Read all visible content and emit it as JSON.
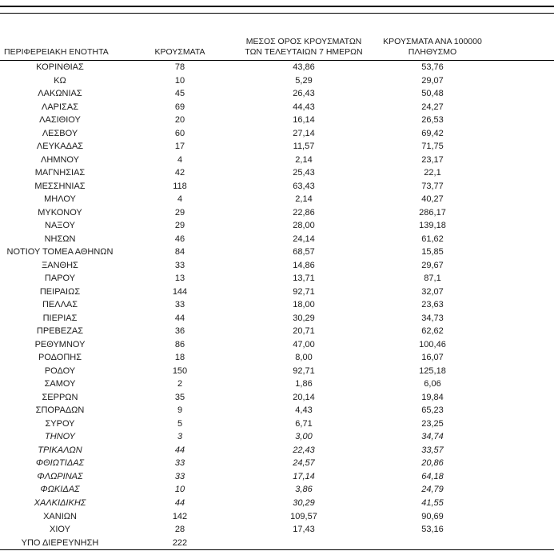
{
  "page": {
    "background": "#ffffff",
    "text_color": "#1c1c1c",
    "line_color": "#000000"
  },
  "table": {
    "header": {
      "region": "ΠΕΡΙΦΕΡΕΙΑΚΗ ΕΝΟΤΗΤΑ",
      "cases": "ΚΡΟΥΣΜΑΤΑ",
      "avg7_line1": "ΜΕΣΟΣ ΟΡΟΣ ΚΡΟΥΣΜΑΤΩΝ",
      "avg7_line2": "ΤΩΝ ΤΕΛΕΥΤΑΙΩΝ 7 ΗΜΕΡΩΝ",
      "per100k_line1": "ΚΡΟΥΣΜΑΤΑ ΑΝΑ 100000",
      "per100k_line2": "ΠΛΗΘΥΣΜΟ"
    },
    "rows": [
      {
        "region": "ΚΟΡΙΝΘΙΑΣ",
        "cases": "78",
        "avg7": "43,86",
        "per100k": "53,76",
        "italic": false
      },
      {
        "region": "ΚΩ",
        "cases": "10",
        "avg7": "5,29",
        "per100k": "29,07",
        "italic": false
      },
      {
        "region": "ΛΑΚΩΝΙΑΣ",
        "cases": "45",
        "avg7": "26,43",
        "per100k": "50,48",
        "italic": false
      },
      {
        "region": "ΛΑΡΙΣΑΣ",
        "cases": "69",
        "avg7": "44,43",
        "per100k": "24,27",
        "italic": false
      },
      {
        "region": "ΛΑΣΙΘΙΟΥ",
        "cases": "20",
        "avg7": "16,14",
        "per100k": "26,53",
        "italic": false
      },
      {
        "region": "ΛΕΣΒΟΥ",
        "cases": "60",
        "avg7": "27,14",
        "per100k": "69,42",
        "italic": false
      },
      {
        "region": "ΛΕΥΚΑΔΑΣ",
        "cases": "17",
        "avg7": "11,57",
        "per100k": "71,75",
        "italic": false
      },
      {
        "region": "ΛΗΜΝΟΥ",
        "cases": "4",
        "avg7": "2,14",
        "per100k": "23,17",
        "italic": false
      },
      {
        "region": "ΜΑΓΝΗΣΙΑΣ",
        "cases": "42",
        "avg7": "25,43",
        "per100k": "22,1",
        "italic": false
      },
      {
        "region": "ΜΕΣΣΗΝΙΑΣ",
        "cases": "118",
        "avg7": "63,43",
        "per100k": "73,77",
        "italic": false
      },
      {
        "region": "ΜΗΛΟΥ",
        "cases": "4",
        "avg7": "2,14",
        "per100k": "40,27",
        "italic": false
      },
      {
        "region": "ΜΥΚΟΝΟΥ",
        "cases": "29",
        "avg7": "22,86",
        "per100k": "286,17",
        "italic": false
      },
      {
        "region": "ΝΑΞΟΥ",
        "cases": "29",
        "avg7": "28,00",
        "per100k": "139,18",
        "italic": false
      },
      {
        "region": "ΝΗΣΩΝ",
        "cases": "46",
        "avg7": "24,14",
        "per100k": "61,62",
        "italic": false
      },
      {
        "region": "ΝΟΤΙΟΥ ΤΟΜΕΑ ΑΘΗΝΩΝ",
        "cases": "84",
        "avg7": "68,57",
        "per100k": "15,85",
        "italic": false
      },
      {
        "region": "ΞΑΝΘΗΣ",
        "cases": "33",
        "avg7": "14,86",
        "per100k": "29,67",
        "italic": false
      },
      {
        "region": "ΠΑΡΟΥ",
        "cases": "13",
        "avg7": "13,71",
        "per100k": "87,1",
        "italic": false
      },
      {
        "region": "ΠΕΙΡΑΙΩΣ",
        "cases": "144",
        "avg7": "92,71",
        "per100k": "32,07",
        "italic": false
      },
      {
        "region": "ΠΕΛΛΑΣ",
        "cases": "33",
        "avg7": "18,00",
        "per100k": "23,63",
        "italic": false
      },
      {
        "region": "ΠΙΕΡΙΑΣ",
        "cases": "44",
        "avg7": "30,29",
        "per100k": "34,73",
        "italic": false
      },
      {
        "region": "ΠΡΕΒΕΖΑΣ",
        "cases": "36",
        "avg7": "20,71",
        "per100k": "62,62",
        "italic": false
      },
      {
        "region": "ΡΕΘΥΜΝΟΥ",
        "cases": "86",
        "avg7": "47,00",
        "per100k": "100,46",
        "italic": false
      },
      {
        "region": "ΡΟΔΟΠΗΣ",
        "cases": "18",
        "avg7": "8,00",
        "per100k": "16,07",
        "italic": false
      },
      {
        "region": "ΡΟΔΟΥ",
        "cases": "150",
        "avg7": "92,71",
        "per100k": "125,18",
        "italic": false
      },
      {
        "region": "ΣΑΜΟΥ",
        "cases": "2",
        "avg7": "1,86",
        "per100k": "6,06",
        "italic": false
      },
      {
        "region": "ΣΕΡΡΩΝ",
        "cases": "35",
        "avg7": "20,14",
        "per100k": "19,84",
        "italic": false
      },
      {
        "region": "ΣΠΟΡΑΔΩΝ",
        "cases": "9",
        "avg7": "4,43",
        "per100k": "65,23",
        "italic": false
      },
      {
        "region": "ΣΥΡΟΥ",
        "cases": "5",
        "avg7": "6,71",
        "per100k": "23,25",
        "italic": false
      },
      {
        "region": "ΤΗΝΟΥ",
        "cases": "3",
        "avg7": "3,00",
        "per100k": "34,74",
        "italic": true
      },
      {
        "region": "ΤΡΙΚΑΛΩΝ",
        "cases": "44",
        "avg7": "22,43",
        "per100k": "33,57",
        "italic": true
      },
      {
        "region": "ΦΘΙΩΤΙΔΑΣ",
        "cases": "33",
        "avg7": "24,57",
        "per100k": "20,86",
        "italic": true
      },
      {
        "region": "ΦΛΩΡΙΝΑΣ",
        "cases": "33",
        "avg7": "17,14",
        "per100k": "64,18",
        "italic": true
      },
      {
        "region": "ΦΩΚΙΔΑΣ",
        "cases": "10",
        "avg7": "3,86",
        "per100k": "24,79",
        "italic": true
      },
      {
        "region": "ΧΑΛΚΙΔΙΚΗΣ",
        "cases": "44",
        "avg7": "30,29",
        "per100k": "41,55",
        "italic": true
      },
      {
        "region": "ΧΑΝΙΩΝ",
        "cases": "142",
        "avg7": "109,57",
        "per100k": "90,69",
        "italic": false
      },
      {
        "region": "ΧΙΟΥ",
        "cases": "28",
        "avg7": "17,43",
        "per100k": "53,16",
        "italic": false
      },
      {
        "region": "ΥΠΟ ΔΙΕΡΕΥΝΗΣΗ",
        "cases": "222",
        "avg7": "",
        "per100k": "",
        "italic": false
      }
    ]
  }
}
